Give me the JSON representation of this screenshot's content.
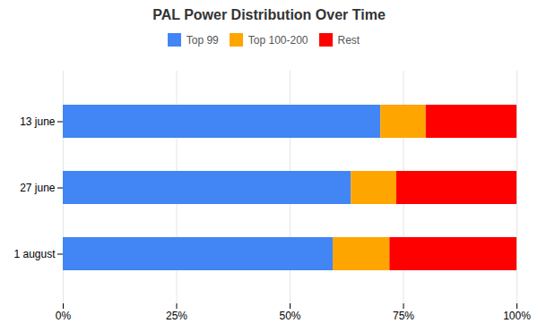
{
  "chart_data": {
    "type": "bar",
    "orientation": "horizontal",
    "stacked": true,
    "title": "PAL Power Distribution Over Time",
    "categories": [
      "13 june",
      "27 june",
      "1 august"
    ],
    "series": [
      {
        "name": "Top 99",
        "color": "#4285F4",
        "values": [
          0.7,
          0.635,
          0.595
        ]
      },
      {
        "name": "Top 100-200",
        "color": "#FFA500",
        "values": [
          0.1,
          0.1,
          0.125
        ]
      },
      {
        "name": "Rest",
        "color": "#FF0000",
        "values": [
          0.2,
          0.265,
          0.28
        ]
      }
    ],
    "xlim": [
      0,
      1.0
    ],
    "xticks": [
      {
        "value": 0.0,
        "label": "0%"
      },
      {
        "value": 0.25,
        "label": "25%"
      },
      {
        "value": 0.5,
        "label": "50%"
      },
      {
        "value": 0.75,
        "label": "75%"
      },
      {
        "value": 1.0,
        "label": "100%"
      }
    ],
    "grid": true,
    "legend": "top"
  }
}
